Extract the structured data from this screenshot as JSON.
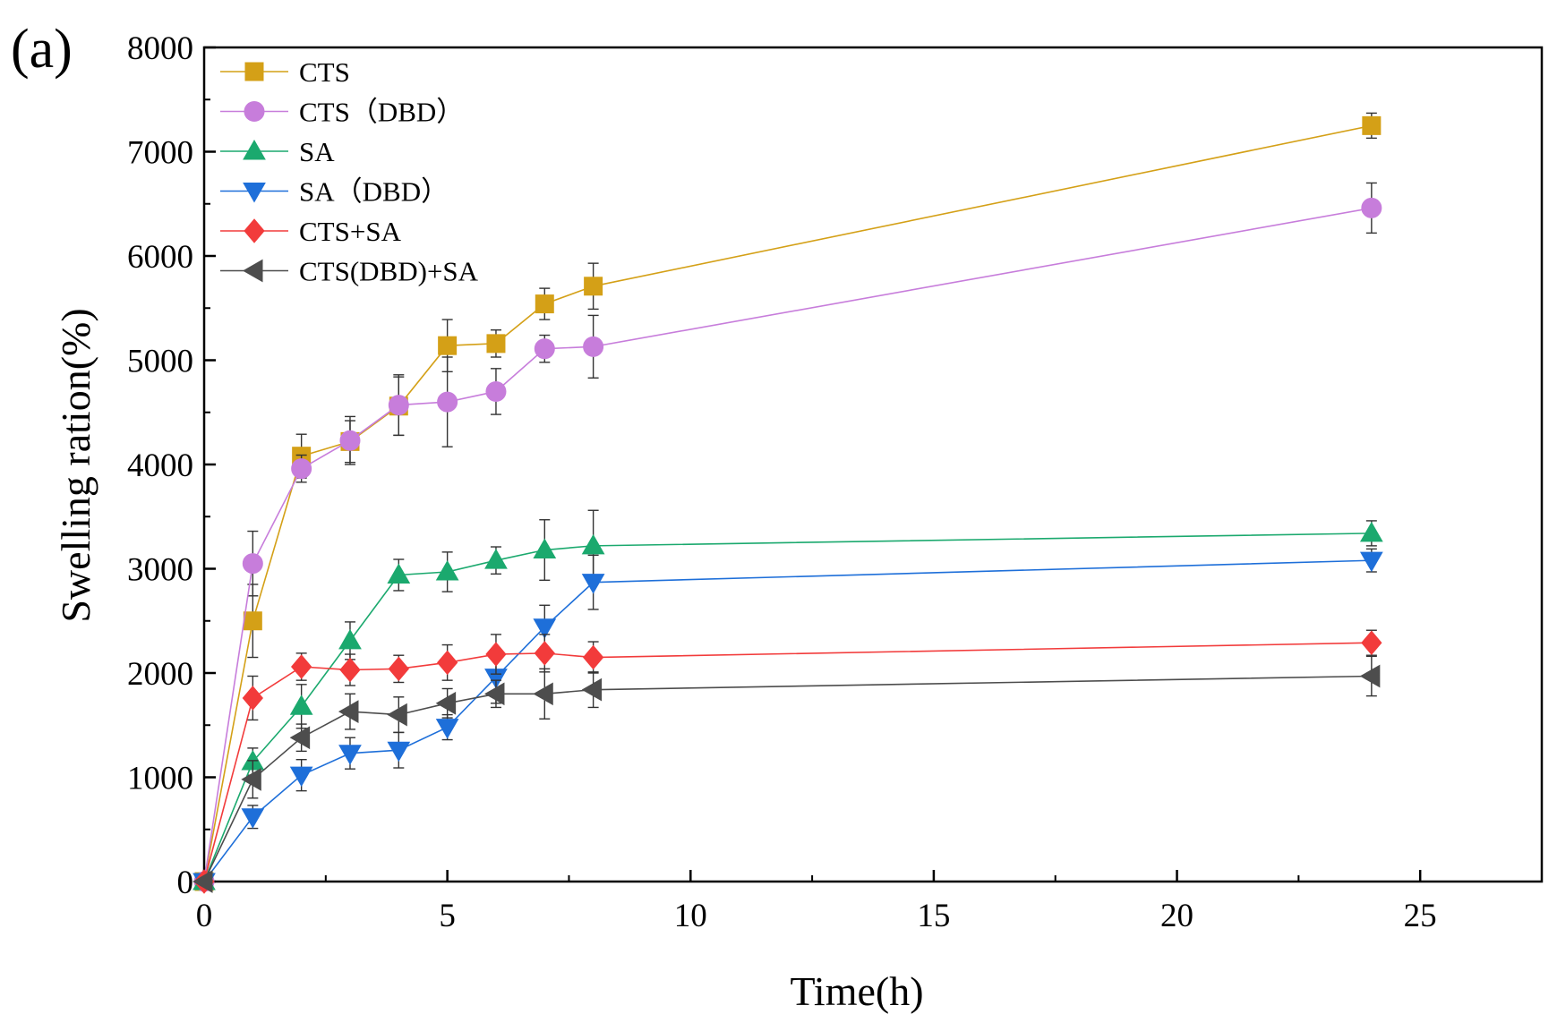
{
  "panel_label": "(a)",
  "chart_data": {
    "type": "line",
    "title": "",
    "xlabel": "Time(h)",
    "ylabel": "Swelling ration(%)",
    "xlim": [
      0,
      27.5
    ],
    "ylim": [
      0,
      8000
    ],
    "xticks": [
      0,
      5,
      10,
      15,
      20,
      25
    ],
    "yticks": [
      0,
      1000,
      2000,
      3000,
      4000,
      5000,
      6000,
      7000,
      8000
    ],
    "grid": false,
    "legend_position": "top-left",
    "series": [
      {
        "name": "CTS",
        "color": "#D4A017",
        "marker": "square",
        "x": [
          0,
          1,
          2,
          3,
          4,
          5,
          6,
          7,
          8,
          24
        ],
        "y": [
          0,
          2500,
          4080,
          4220,
          4560,
          5140,
          5160,
          5540,
          5710,
          7250
        ],
        "err": [
          0,
          350,
          210,
          200,
          280,
          250,
          130,
          150,
          220,
          120
        ]
      },
      {
        "name": "CTS（DBD）",
        "color": "#C77DDB",
        "marker": "circle",
        "x": [
          0,
          1,
          2,
          3,
          4,
          5,
          6,
          7,
          8,
          24
        ],
        "y": [
          0,
          3050,
          3960,
          4230,
          4570,
          4600,
          4700,
          5110,
          5130,
          6460
        ],
        "err": [
          0,
          310,
          130,
          230,
          290,
          430,
          220,
          130,
          300,
          240
        ]
      },
      {
        "name": "SA",
        "color": "#1BA96E",
        "marker": "triangle-up",
        "x": [
          0,
          1,
          2,
          3,
          4,
          5,
          6,
          7,
          8,
          24
        ],
        "y": [
          0,
          1150,
          1680,
          2310,
          2940,
          2970,
          3080,
          3180,
          3220,
          3340
        ],
        "err": [
          0,
          130,
          210,
          180,
          150,
          190,
          130,
          290,
          340,
          120
        ]
      },
      {
        "name": "SA（DBD）",
        "color": "#1E6FD9",
        "marker": "triangle-down",
        "x": [
          0,
          1,
          2,
          3,
          4,
          5,
          6,
          7,
          8,
          24
        ],
        "y": [
          0,
          620,
          1020,
          1230,
          1260,
          1480,
          1960,
          2440,
          2870,
          3080
        ],
        "err": [
          0,
          110,
          150,
          150,
          170,
          120,
          250,
          210,
          260,
          110
        ]
      },
      {
        "name": "CTS+SA",
        "color": "#F23B3B",
        "marker": "diamond",
        "x": [
          0,
          1,
          2,
          3,
          4,
          5,
          6,
          7,
          8,
          24
        ],
        "y": [
          0,
          1760,
          2060,
          2030,
          2040,
          2100,
          2180,
          2190,
          2150,
          2290
        ],
        "err": [
          0,
          210,
          130,
          150,
          130,
          170,
          190,
          180,
          150,
          120
        ]
      },
      {
        "name": "CTS(DBD)+SA",
        "color": "#4D4D4D",
        "marker": "triangle-left",
        "x": [
          0,
          1,
          2,
          3,
          4,
          5,
          6,
          7,
          8,
          24
        ],
        "y": [
          0,
          980,
          1380,
          1630,
          1600,
          1710,
          1800,
          1800,
          1840,
          1970
        ],
        "err": [
          0,
          180,
          130,
          170,
          170,
          140,
          130,
          240,
          170,
          190
        ]
      }
    ]
  }
}
